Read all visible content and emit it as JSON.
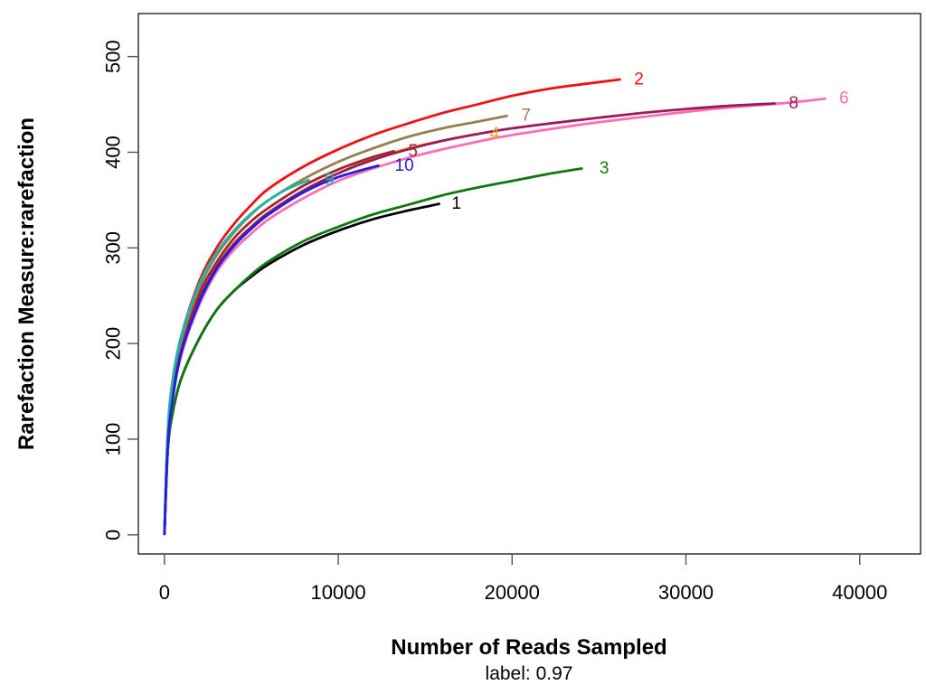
{
  "chart_data": {
    "type": "line",
    "title": "",
    "xlabel": "Number of Reads Sampled",
    "ylabel": "Rarefaction Measure:rarefaction",
    "subtitle": "label: 0.97",
    "xlim": [
      -1500,
      43500
    ],
    "ylim": [
      -20,
      545
    ],
    "xticks": [
      0,
      10000,
      20000,
      30000,
      40000
    ],
    "xtick_labels": [
      "0",
      "10000",
      "20000",
      "30000",
      "40000"
    ],
    "yticks": [
      0,
      100,
      200,
      300,
      400,
      500
    ],
    "ytick_labels": [
      "0",
      "100",
      "200",
      "300",
      "400",
      "500"
    ],
    "grid": false,
    "legend": "none",
    "series": [
      {
        "name": "1",
        "color": "#000000",
        "max_x": 15800,
        "max_y": 346,
        "x": [
          1,
          200,
          500,
          1000,
          2000,
          3000,
          4000,
          5000,
          6000,
          8000,
          10000,
          12000,
          14000,
          15800
        ],
        "y": [
          1,
          90,
          130,
          165,
          205,
          235,
          255,
          270,
          283,
          303,
          318,
          330,
          339,
          346
        ]
      },
      {
        "name": "2",
        "color": "#ee1111",
        "max_x": 26200,
        "max_y": 476,
        "x": [
          1,
          200,
          500,
          1000,
          2000,
          3000,
          4000,
          5000,
          6000,
          8000,
          10000,
          12000,
          14000,
          16000,
          18000,
          20000,
          22000,
          24000,
          26200
        ],
        "y": [
          1,
          110,
          165,
          210,
          265,
          300,
          325,
          345,
          362,
          385,
          403,
          418,
          430,
          441,
          450,
          459,
          466,
          471,
          476
        ]
      },
      {
        "name": "3",
        "color": "#117711",
        "max_x": 24000,
        "max_y": 383,
        "x": [
          1,
          200,
          500,
          1000,
          2000,
          3000,
          4000,
          5000,
          6000,
          8000,
          10000,
          12000,
          14000,
          16000,
          18000,
          20000,
          22000,
          24000
        ],
        "y": [
          1,
          90,
          130,
          165,
          205,
          235,
          255,
          272,
          286,
          307,
          322,
          335,
          345,
          355,
          363,
          370,
          377,
          383
        ]
      },
      {
        "name": "4",
        "color": "#f5a623",
        "max_x": 17900,
        "max_y": 419,
        "x": [
          1,
          200,
          500,
          1000,
          2000,
          3000,
          4000,
          5000,
          6000,
          8000,
          10000,
          12000,
          14000,
          16000,
          17900
        ],
        "y": [
          1,
          100,
          150,
          195,
          245,
          280,
          305,
          322,
          337,
          360,
          378,
          393,
          404,
          412,
          419
        ]
      },
      {
        "name": "5",
        "color": "#a0282a",
        "max_x": 13200,
        "max_y": 401,
        "x": [
          1,
          200,
          500,
          1000,
          2000,
          3000,
          4000,
          5000,
          6000,
          8000,
          10000,
          12000,
          13200
        ],
        "y": [
          1,
          105,
          155,
          200,
          252,
          285,
          310,
          328,
          342,
          365,
          382,
          395,
          401
        ]
      },
      {
        "name": "6",
        "color": "#ff6eb4",
        "max_x": 38000,
        "max_y": 456,
        "x": [
          1,
          200,
          500,
          1000,
          2000,
          3000,
          4000,
          5000,
          6000,
          8000,
          10000,
          12000,
          14000,
          16000,
          18000,
          20000,
          24000,
          28000,
          32000,
          36000,
          38000
        ],
        "y": [
          1,
          95,
          145,
          190,
          240,
          275,
          298,
          315,
          330,
          352,
          370,
          383,
          394,
          403,
          411,
          418,
          429,
          438,
          446,
          452,
          456
        ]
      },
      {
        "name": "7",
        "color": "#948052",
        "max_x": 19700,
        "max_y": 438,
        "x": [
          1,
          200,
          500,
          1000,
          2000,
          3000,
          4000,
          5000,
          6000,
          8000,
          10000,
          12000,
          14000,
          16000,
          18000,
          19700
        ],
        "y": [
          1,
          108,
          160,
          205,
          258,
          292,
          316,
          335,
          350,
          372,
          390,
          404,
          416,
          425,
          432,
          438
        ]
      },
      {
        "name": "8",
        "color": "#9b1a5a",
        "max_x": 35100,
        "max_y": 451,
        "x": [
          1,
          200,
          500,
          1000,
          2000,
          3000,
          4000,
          5000,
          6000,
          8000,
          10000,
          12000,
          14000,
          16000,
          18000,
          20000,
          24000,
          28000,
          32000,
          35100
        ],
        "y": [
          1,
          100,
          150,
          195,
          246,
          280,
          304,
          322,
          337,
          360,
          378,
          392,
          403,
          412,
          419,
          425,
          434,
          442,
          448,
          451
        ]
      },
      {
        "name": "9",
        "color": "#1fb4a8",
        "max_x": 8300,
        "max_y": 371,
        "x": [
          1,
          200,
          500,
          1000,
          2000,
          3000,
          4000,
          5000,
          6000,
          7000,
          8300
        ],
        "y": [
          1,
          110,
          165,
          210,
          262,
          295,
          318,
          336,
          350,
          361,
          371
        ]
      },
      {
        "name": "10",
        "color": "#1f1fe0",
        "max_x": 12300,
        "max_y": 386,
        "x": [
          1,
          200,
          500,
          1000,
          2000,
          3000,
          4000,
          5000,
          6000,
          8000,
          10000,
          12300
        ],
        "y": [
          1,
          95,
          145,
          192,
          243,
          278,
          302,
          320,
          335,
          358,
          374,
          386
        ]
      }
    ],
    "curve_labels": [
      {
        "text": "1",
        "x": 16800,
        "y": 346,
        "color": "#000000"
      },
      {
        "text": "2",
        "x": 27300,
        "y": 476,
        "color": "#ee1111"
      },
      {
        "text": "3",
        "x": 25300,
        "y": 383,
        "color": "#117711"
      },
      {
        "text": "4",
        "x": 19000,
        "y": 419,
        "color": "#f5a623"
      },
      {
        "text": "5",
        "x": 14300,
        "y": 401,
        "color": "#a0282a"
      },
      {
        "text": "6",
        "x": 39100,
        "y": 456,
        "color": "#ff6eb4"
      },
      {
        "text": "7",
        "x": 20800,
        "y": 438,
        "color": "#948052"
      },
      {
        "text": "8",
        "x": 36200,
        "y": 451,
        "color": "#9b1a5a"
      },
      {
        "text": "9",
        "x": 9500,
        "y": 371,
        "color": "#1fb4a8"
      },
      {
        "text": "10",
        "x": 13800,
        "y": 386,
        "color": "#1f1fe0"
      }
    ]
  }
}
